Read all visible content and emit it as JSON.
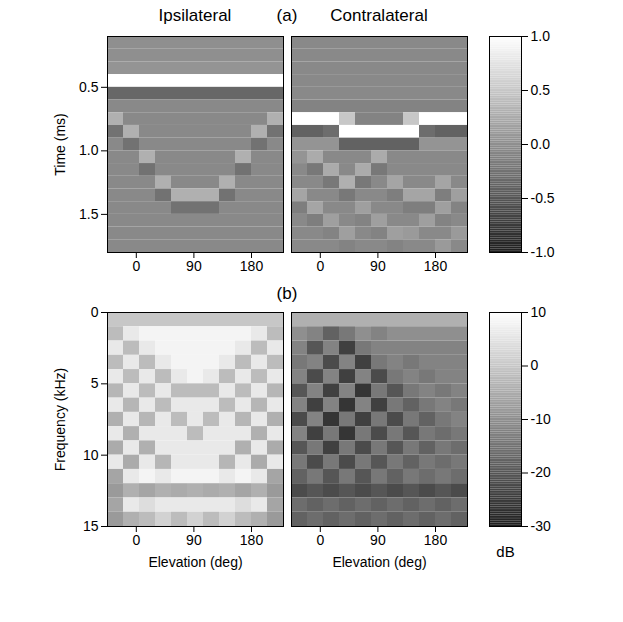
{
  "chart_data": [
    {
      "type": "heatmap",
      "title": "Ipsilateral",
      "annotations": [
        "(a)"
      ],
      "ylabel": "Time (ms)",
      "xlim": [
        -45,
        230
      ],
      "xticks": [
        0,
        90,
        180
      ],
      "ylim": [
        0.1,
        1.8
      ],
      "yticks": [
        0.5,
        {
          "value": 1,
          "label": "1.0"
        },
        1.5
      ],
      "x_bins": [
        -45,
        -20,
        5,
        30,
        55,
        80,
        105,
        130,
        155,
        180,
        205,
        230
      ],
      "y_bins": [
        0.1,
        0.2,
        0.3,
        0.4,
        0.5,
        0.6,
        0.7,
        0.8,
        0.9,
        1.0,
        1.1,
        1.2,
        1.3,
        1.4,
        1.5,
        1.6,
        1.7,
        1.8
      ],
      "values": [
        [
          0,
          0,
          0,
          0,
          0,
          0,
          0,
          0,
          0,
          0,
          0
        ],
        [
          0,
          0,
          0,
          0,
          0,
          0,
          0,
          0,
          0,
          0,
          0
        ],
        [
          0.05,
          0.05,
          0.05,
          0.05,
          0.05,
          0.05,
          0.05,
          0.05,
          0.05,
          0.05,
          0.05
        ],
        [
          1,
          1,
          1,
          1,
          1,
          1,
          1,
          1,
          1,
          1,
          1
        ],
        [
          -0.35,
          -0.35,
          -0.35,
          -0.35,
          -0.35,
          -0.35,
          -0.35,
          -0.35,
          -0.35,
          -0.35,
          -0.35
        ],
        [
          -0.05,
          -0.05,
          -0.05,
          -0.05,
          -0.05,
          -0.05,
          -0.05,
          -0.05,
          -0.05,
          -0.05,
          -0.05
        ],
        [
          0.3,
          -0.05,
          -0.05,
          -0.05,
          -0.05,
          -0.05,
          -0.05,
          -0.05,
          -0.05,
          -0.05,
          0.3
        ],
        [
          -0.25,
          0.3,
          -0.05,
          -0.05,
          -0.05,
          -0.05,
          -0.05,
          -0.05,
          -0.05,
          0.3,
          -0.25
        ],
        [
          -0.05,
          -0.25,
          -0.05,
          -0.05,
          -0.05,
          -0.05,
          -0.05,
          -0.05,
          -0.05,
          -0.25,
          -0.05
        ],
        [
          -0.05,
          -0.05,
          0.3,
          -0.05,
          -0.05,
          -0.05,
          -0.05,
          -0.05,
          0.3,
          -0.05,
          -0.05
        ],
        [
          -0.05,
          -0.05,
          -0.25,
          -0.05,
          -0.05,
          -0.05,
          -0.05,
          -0.05,
          -0.25,
          -0.05,
          -0.05
        ],
        [
          -0.05,
          -0.05,
          -0.05,
          0.3,
          -0.05,
          -0.05,
          -0.05,
          0.3,
          -0.05,
          -0.05,
          -0.05
        ],
        [
          -0.05,
          -0.05,
          -0.05,
          -0.25,
          0.3,
          0.3,
          0.3,
          -0.25,
          -0.05,
          -0.05,
          -0.05
        ],
        [
          -0.05,
          -0.05,
          -0.05,
          -0.05,
          -0.25,
          -0.25,
          -0.25,
          -0.05,
          -0.05,
          -0.05,
          -0.05
        ],
        [
          -0.05,
          -0.05,
          -0.05,
          -0.05,
          -0.05,
          -0.05,
          -0.05,
          -0.05,
          -0.05,
          -0.05,
          -0.05
        ],
        [
          -0.05,
          -0.05,
          -0.05,
          -0.05,
          -0.05,
          -0.05,
          -0.05,
          -0.05,
          -0.05,
          -0.05,
          -0.05
        ],
        [
          -0.05,
          -0.05,
          -0.05,
          -0.05,
          -0.05,
          -0.05,
          -0.05,
          -0.05,
          -0.05,
          -0.05,
          -0.05
        ]
      ],
      "colorbar": {
        "lim": [
          -1,
          1
        ],
        "ticks": [
          {
            "value": 1,
            "label": "1.0"
          },
          0.5,
          {
            "value": 0,
            "label": "0.0"
          },
          -0.5,
          {
            "value": -1,
            "label": "-1.0"
          }
        ]
      }
    },
    {
      "type": "heatmap",
      "title": "Contralateral",
      "tick_labels": "x",
      "xlim": [
        -45,
        230
      ],
      "xticks": [
        0,
        90,
        180
      ],
      "ylim": [
        0.1,
        1.8
      ],
      "yticks": [
        0.5,
        {
          "value": 1,
          "label": "1.0"
        },
        1.5
      ],
      "x_bins": [
        -45,
        -20,
        5,
        30,
        55,
        80,
        105,
        130,
        155,
        180,
        205,
        230
      ],
      "y_bins": [
        0.1,
        0.2,
        0.3,
        0.4,
        0.5,
        0.6,
        0.7,
        0.8,
        0.9,
        1.0,
        1.1,
        1.2,
        1.3,
        1.4,
        1.5,
        1.6,
        1.7,
        1.8
      ],
      "values": [
        [
          -0.05,
          -0.05,
          -0.05,
          -0.05,
          -0.05,
          -0.05,
          -0.05,
          -0.05,
          -0.05,
          -0.05,
          -0.05
        ],
        [
          -0.05,
          -0.05,
          -0.05,
          -0.05,
          -0.05,
          -0.05,
          -0.05,
          -0.05,
          -0.05,
          -0.05,
          -0.05
        ],
        [
          -0.05,
          -0.05,
          -0.05,
          -0.05,
          -0.05,
          -0.05,
          -0.05,
          -0.05,
          -0.05,
          -0.05,
          -0.05
        ],
        [
          -0.05,
          -0.05,
          -0.05,
          -0.05,
          -0.05,
          -0.05,
          -0.05,
          -0.05,
          -0.05,
          -0.05,
          -0.05
        ],
        [
          -0.05,
          -0.05,
          -0.05,
          -0.05,
          -0.05,
          -0.05,
          -0.05,
          -0.05,
          -0.05,
          -0.05,
          -0.05
        ],
        [
          -0.1,
          -0.1,
          -0.1,
          -0.1,
          -0.1,
          -0.1,
          -0.1,
          -0.1,
          -0.1,
          -0.1,
          -0.1
        ],
        [
          1,
          1,
          1,
          0.5,
          -0.1,
          -0.1,
          -0.1,
          0.5,
          1,
          1,
          1
        ],
        [
          -0.4,
          -0.4,
          -0.3,
          1,
          1,
          1,
          1,
          1,
          -0.3,
          -0.4,
          -0.4
        ],
        [
          0.05,
          0.05,
          0.05,
          -0.4,
          -0.4,
          -0.4,
          -0.4,
          -0.4,
          0.05,
          0.05,
          0.05
        ],
        [
          0.05,
          0.25,
          -0.05,
          -0.05,
          -0.05,
          0.25,
          -0.05,
          -0.05,
          -0.05,
          -0.05,
          -0.05
        ],
        [
          -0.05,
          -0.2,
          0.25,
          -0.05,
          0.25,
          -0.2,
          -0.05,
          -0.05,
          -0.05,
          -0.05,
          -0.05
        ],
        [
          -0.05,
          -0.05,
          -0.2,
          0.3,
          -0.2,
          -0.05,
          0.2,
          -0.05,
          -0.05,
          0.2,
          -0.05
        ],
        [
          0.2,
          -0.05,
          -0.05,
          -0.2,
          -0.05,
          -0.05,
          -0.15,
          0.2,
          0.2,
          -0.15,
          0.15
        ],
        [
          -0.15,
          0.2,
          -0.05,
          -0.05,
          0.15,
          -0.05,
          -0.05,
          -0.15,
          -0.15,
          0.15,
          -0.1
        ],
        [
          -0.05,
          -0.15,
          0.15,
          -0.05,
          -0.1,
          0.15,
          -0.05,
          -0.05,
          0.15,
          -0.1,
          -0.05
        ],
        [
          -0.05,
          -0.05,
          -0.1,
          0.15,
          -0.05,
          -0.1,
          0.15,
          0.1,
          -0.05,
          -0.05,
          0.1
        ],
        [
          -0.05,
          -0.05,
          -0.05,
          -0.1,
          -0.05,
          -0.05,
          -0.1,
          -0.05,
          -0.05,
          0.1,
          -0.05
        ]
      ],
      "colorbar": {
        "lim": [
          -1,
          1
        ],
        "ticks": [
          {
            "value": 1,
            "label": "1.0"
          },
          0.5,
          {
            "value": 0,
            "label": "0.0"
          },
          -0.5,
          {
            "value": -1,
            "label": "-1.0"
          }
        ]
      }
    },
    {
      "type": "heatmap",
      "annotations": [
        "(b)"
      ],
      "xlabel": "Elevation (deg)",
      "ylabel": "Frequency (kHz)",
      "xlim": [
        -45,
        230
      ],
      "xticks": [
        0,
        90,
        180
      ],
      "ylim": [
        0,
        15
      ],
      "yticks": [
        0,
        5,
        10,
        15
      ],
      "x_bins": [
        -45,
        -20,
        5,
        30,
        55,
        80,
        105,
        130,
        155,
        180,
        205,
        230
      ],
      "y_bins": [
        0,
        1,
        2,
        3,
        4,
        5,
        6,
        7,
        8,
        9,
        10,
        11,
        12,
        13,
        14,
        15
      ],
      "values": [
        [
          0,
          0,
          0,
          0,
          0,
          0,
          0,
          0,
          0,
          0,
          0
        ],
        [
          -2,
          6,
          8,
          8,
          8,
          8,
          8,
          8,
          8,
          6,
          -2
        ],
        [
          6,
          -2,
          6,
          8,
          8,
          8,
          8,
          8,
          6,
          -2,
          6
        ],
        [
          -2,
          6,
          -2,
          6,
          8,
          8,
          8,
          6,
          -2,
          6,
          -2
        ],
        [
          6,
          -2,
          6,
          -2,
          6,
          8,
          6,
          -2,
          6,
          -2,
          6
        ],
        [
          -3,
          6,
          -2,
          6,
          -2,
          -2,
          -2,
          6,
          -2,
          6,
          -3
        ],
        [
          6,
          -3,
          6,
          -2,
          6,
          6,
          6,
          -2,
          6,
          -3,
          6
        ],
        [
          -4,
          6,
          -3,
          6,
          -2,
          6,
          -2,
          6,
          -3,
          6,
          -4
        ],
        [
          6,
          -4,
          6,
          6,
          6,
          -2,
          6,
          6,
          6,
          -4,
          6
        ],
        [
          -5,
          6,
          -4,
          6,
          6,
          6,
          6,
          6,
          -4,
          6,
          -5
        ],
        [
          6,
          -5,
          6,
          -3,
          6,
          6,
          6,
          -3,
          6,
          -5,
          6
        ],
        [
          -6,
          6,
          8,
          6,
          8,
          8,
          8,
          6,
          8,
          6,
          -6
        ],
        [
          -8,
          -4,
          -6,
          -4,
          -5,
          -4,
          -5,
          -4,
          -6,
          -4,
          -8
        ],
        [
          -6,
          6,
          4,
          6,
          6,
          6,
          6,
          6,
          4,
          6,
          -6
        ],
        [
          -8,
          -4,
          -2,
          2,
          -2,
          2,
          -2,
          2,
          -2,
          -4,
          -8
        ]
      ],
      "colorbar": {
        "lim": [
          -30,
          10
        ],
        "ticks": [
          10,
          0,
          -10,
          -20,
          -30
        ],
        "label": "dB"
      }
    },
    {
      "type": "heatmap",
      "xlabel": "Elevation (deg)",
      "tick_labels": "x",
      "xlim": [
        -45,
        230
      ],
      "xticks": [
        0,
        90,
        180
      ],
      "ylim": [
        0,
        15
      ],
      "yticks": [
        0,
        5,
        10,
        15
      ],
      "x_bins": [
        -45,
        -20,
        5,
        30,
        55,
        80,
        105,
        130,
        155,
        180,
        205,
        230
      ],
      "y_bins": [
        0,
        1,
        2,
        3,
        4,
        5,
        6,
        7,
        8,
        9,
        10,
        11,
        12,
        13,
        14,
        15
      ],
      "values": [
        [
          -4,
          -4,
          -4,
          -4,
          -4,
          -4,
          -4,
          -4,
          -4,
          -4,
          -4
        ],
        [
          -10,
          -12,
          -18,
          -14,
          -10,
          -12,
          -10,
          -10,
          -10,
          -10,
          -10
        ],
        [
          -12,
          -20,
          -12,
          -24,
          -14,
          -12,
          -12,
          -12,
          -12,
          -12,
          -12
        ],
        [
          -14,
          -12,
          -22,
          -12,
          -24,
          -14,
          -12,
          -14,
          -12,
          -12,
          -12
        ],
        [
          -12,
          -22,
          -12,
          -24,
          -12,
          -22,
          -14,
          -12,
          -14,
          -12,
          -12
        ],
        [
          -20,
          -12,
          -24,
          -12,
          -26,
          -14,
          -20,
          -14,
          -12,
          -14,
          -12
        ],
        [
          -12,
          -24,
          -12,
          -26,
          -12,
          -24,
          -14,
          -18,
          -14,
          -12,
          -14
        ],
        [
          -22,
          -12,
          -26,
          -14,
          -24,
          -14,
          -22,
          -14,
          -18,
          -14,
          -12
        ],
        [
          -12,
          -24,
          -14,
          -26,
          -14,
          -22,
          -14,
          -20,
          -14,
          -16,
          -14
        ],
        [
          -20,
          -14,
          -24,
          -14,
          -22,
          -14,
          -20,
          -14,
          -18,
          -14,
          -16
        ],
        [
          -14,
          -22,
          -14,
          -22,
          -14,
          -20,
          -14,
          -18,
          -14,
          -16,
          -14
        ],
        [
          -18,
          -14,
          -20,
          -14,
          -20,
          -14,
          -18,
          -14,
          -16,
          -14,
          -16
        ],
        [
          -22,
          -20,
          -22,
          -20,
          -22,
          -20,
          -22,
          -20,
          -22,
          -20,
          -22
        ],
        [
          -16,
          -18,
          -16,
          -18,
          -16,
          -18,
          -16,
          -18,
          -16,
          -18,
          -16
        ],
        [
          -18,
          -16,
          -18,
          -16,
          -18,
          -16,
          -18,
          -16,
          -18,
          -16,
          -18
        ]
      ],
      "colorbar": {
        "lim": [
          -30,
          10
        ],
        "ticks": [
          10,
          0,
          -10,
          -20,
          -30
        ],
        "label": "dB"
      }
    }
  ]
}
